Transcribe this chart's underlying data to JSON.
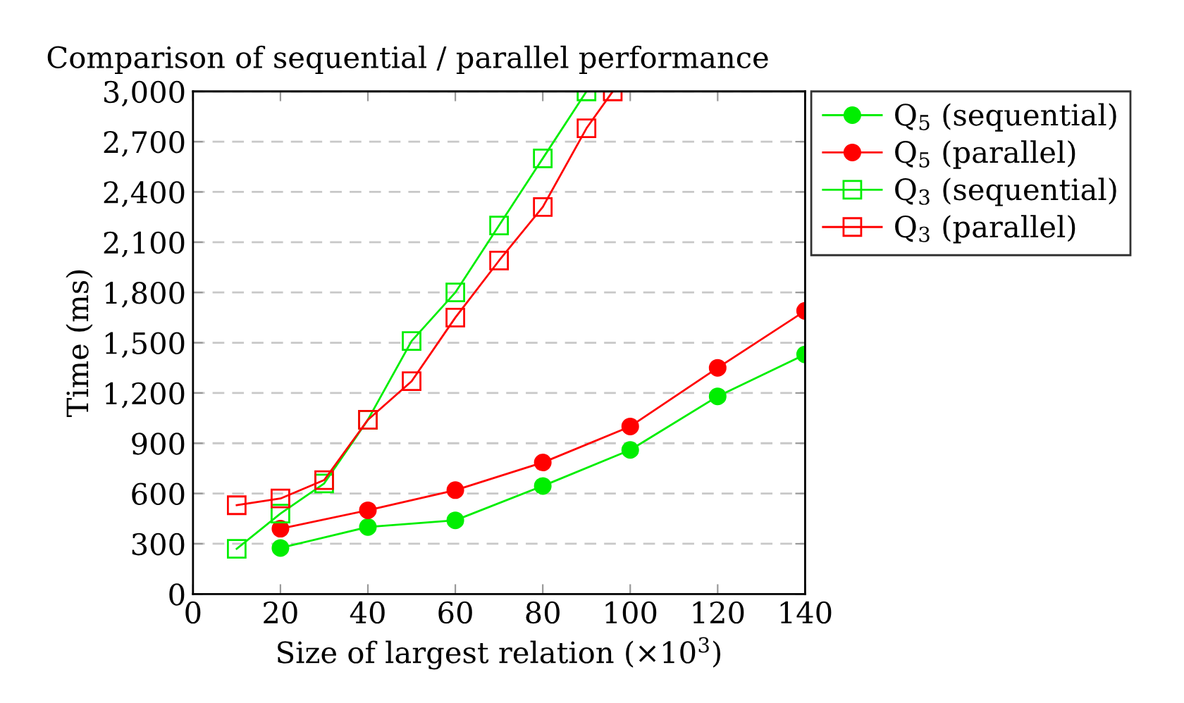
{
  "chart_data": {
    "type": "line",
    "title": "Comparison of sequential / parallel performance",
    "xlabel": "Size of largest relation (×10$^{3}$)",
    "ylabel": "Time (ms)",
    "xlim": [
      0,
      140
    ],
    "xticks": [
      0,
      20,
      40,
      60,
      80,
      100,
      120,
      140
    ],
    "ylim": [
      0,
      3000
    ],
    "yticks": [
      0,
      300,
      600,
      900,
      {
        "value": 1200,
        "label": "1,200"
      },
      {
        "value": 1500,
        "label": "1,500"
      },
      {
        "value": 1800,
        "label": "1,800"
      },
      {
        "value": 2100,
        "label": "2,100"
      },
      {
        "value": 2400,
        "label": "2,400"
      },
      {
        "value": 2700,
        "label": "2,700"
      },
      {
        "value": 3000,
        "label": "3,000"
      }
    ],
    "grid": "y",
    "legend": "top right",
    "series": [
      {
        "name": "Q$_{5}$ (sequential)",
        "color": "#00ee00",
        "marker": "circle",
        "x": [
          20,
          40,
          60,
          80,
          100,
          120,
          140
        ],
        "values": [
          275,
          400,
          440,
          645,
          860,
          1180,
          1430
        ]
      },
      {
        "name": "Q$_{5}$ (parallel)",
        "color": "#ff0000",
        "marker": "circle",
        "x": [
          20,
          40,
          60,
          80,
          100,
          120,
          140
        ],
        "values": [
          390,
          500,
          620,
          785,
          1000,
          1350,
          1690
        ]
      },
      {
        "name": "Q$_{3}$ (sequential)",
        "color": "#00ee00",
        "marker": "square",
        "x": [
          10,
          20,
          30,
          40,
          50,
          60,
          70,
          80,
          90
        ],
        "values": [
          270,
          480,
          660,
          1040,
          1510,
          1800,
          2200,
          2600,
          3000
        ]
      },
      {
        "name": "Q$_{3}$ (parallel)",
        "color": "#ff0000",
        "marker": "square",
        "x": [
          10,
          20,
          30,
          40,
          50,
          60,
          70,
          80,
          90,
          96
        ],
        "values": [
          530,
          570,
          680,
          1040,
          1270,
          1650,
          1990,
          2310,
          2780,
          3000
        ]
      }
    ]
  }
}
